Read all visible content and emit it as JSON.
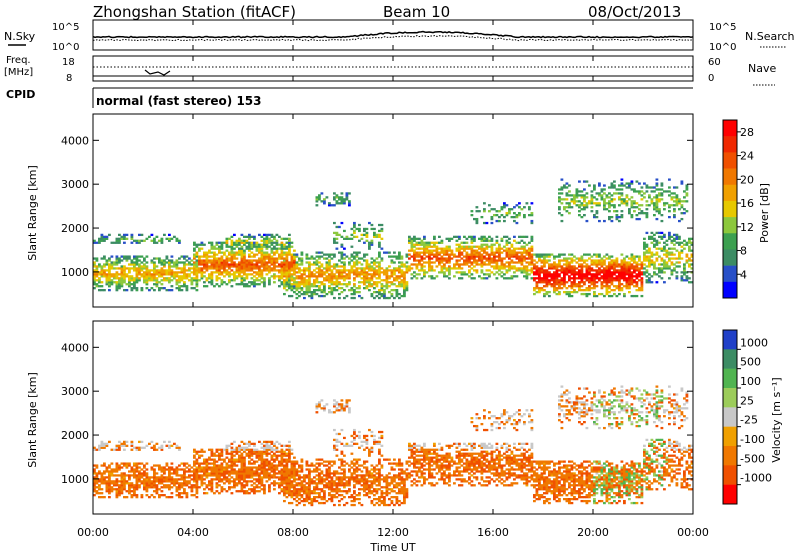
{
  "header": {
    "station": "Zhongshan Station (fitACF)",
    "beam": "Beam 10",
    "date": "08/Oct/2013"
  },
  "top_panels": {
    "nsky_label": "N.Sky",
    "nsearch_label": "N.Search",
    "left_ticks_top": [
      "10^5",
      "10^0"
    ],
    "right_ticks_top": [
      "10^5",
      "10^0"
    ],
    "freq_label_line1": "Freq.",
    "freq_label_line2": "[MHz]",
    "freq_ticks": [
      "18",
      "8"
    ],
    "nave_label": "Nave",
    "nave_ticks": [
      "60",
      "0"
    ],
    "cpid_label": "CPID",
    "cpid_text": "normal (fast stereo) 153"
  },
  "colors": {
    "power": [
      "#0000ff",
      "#2850c8",
      "#3c8c64",
      "#3ca050",
      "#8cc83c",
      "#e6c800",
      "#f0a000",
      "#f07800",
      "#f05000",
      "#f02800",
      "#ff0000"
    ],
    "velocity": [
      "#2040c8",
      "#3c8c64",
      "#50b450",
      "#9ccc5a",
      "#c8c8c8",
      "#f0a000",
      "#f07800",
      "#f05000",
      "#ff0000"
    ]
  },
  "chart_data": [
    {
      "type": "heatmap",
      "name": "power",
      "ylabel": "Slant Range [km]",
      "yticks": [
        1000,
        2000,
        3000,
        4000
      ],
      "ylim": [
        200,
        4600
      ],
      "xlim": [
        0,
        24
      ],
      "colorbar": {
        "label": "Power [dB]",
        "ticks": [
          "4",
          "8",
          "12",
          "16",
          "20",
          "24",
          "28"
        ],
        "range": [
          0,
          30
        ]
      }
    },
    {
      "type": "heatmap",
      "name": "velocity",
      "ylabel": "Slant Range [km]",
      "yticks": [
        1000,
        2000,
        3000,
        4000
      ],
      "ylim": [
        200,
        4600
      ],
      "xlim": [
        0,
        24
      ],
      "xlabel": "Time UT",
      "xticks": [
        "00:00",
        "04:00",
        "08:00",
        "12:00",
        "16:00",
        "20:00",
        "00:00"
      ],
      "colorbar": {
        "label": "Velocity [m s⁻¹]",
        "ticks": [
          "1000",
          "500",
          "100",
          "25",
          "-25",
          "-100",
          "-500",
          "-1000"
        ]
      }
    }
  ]
}
